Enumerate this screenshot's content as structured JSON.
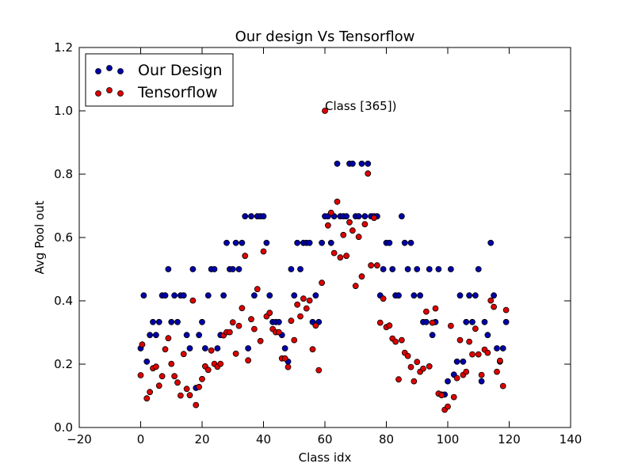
{
  "chart_data": {
    "type": "scatter",
    "title": "Our design Vs Tensorflow",
    "xlabel": "Class idx",
    "ylabel": "Avg Pool out",
    "xlim": [
      -20,
      140
    ],
    "ylim": [
      0.0,
      1.2
    ],
    "x_ticks": [
      "−20",
      "0",
      "20",
      "40",
      "60",
      "80",
      "100",
      "120",
      "140"
    ],
    "y_ticks": [
      "0.0",
      "0.2",
      "0.4",
      "0.6",
      "0.8",
      "1.0",
      "1.2"
    ],
    "grid": false,
    "legend_position": "top-left",
    "annotation": {
      "text": "Class [365])",
      "x": 60,
      "y": 1.0
    },
    "series": [
      {
        "name": "Our Design",
        "color": "#0000aa",
        "points": [
          [
            0,
            0.25
          ],
          [
            1,
            0.417
          ],
          [
            2,
            0.208
          ],
          [
            3,
            0.292
          ],
          [
            4,
            0.333
          ],
          [
            5,
            0.292
          ],
          [
            6,
            0.333
          ],
          [
            7,
            0.417
          ],
          [
            8,
            0.417
          ],
          [
            9,
            0.5
          ],
          [
            10,
            0.333
          ],
          [
            11,
            0.417
          ],
          [
            12,
            0.333
          ],
          [
            13,
            0.417
          ],
          [
            14,
            0.417
          ],
          [
            15,
            0.292
          ],
          [
            16,
            0.25
          ],
          [
            17,
            0.5
          ],
          [
            18,
            0.125
          ],
          [
            19,
            0.292
          ],
          [
            20,
            0.333
          ],
          [
            21,
            0.25
          ],
          [
            22,
            0.417
          ],
          [
            23,
            0.5
          ],
          [
            24,
            0.5
          ],
          [
            25,
            0.25
          ],
          [
            26,
            0.292
          ],
          [
            27,
            0.417
          ],
          [
            28,
            0.583
          ],
          [
            29,
            0.5
          ],
          [
            30,
            0.5
          ],
          [
            31,
            0.583
          ],
          [
            32,
            0.5
          ],
          [
            33,
            0.583
          ],
          [
            34,
            0.667
          ],
          [
            35,
            0.25
          ],
          [
            36,
            0.667
          ],
          [
            37,
            0.417
          ],
          [
            38,
            0.667
          ],
          [
            39,
            0.667
          ],
          [
            40,
            0.667
          ],
          [
            41,
            0.583
          ],
          [
            42,
            0.417
          ],
          [
            43,
            0.333
          ],
          [
            44,
            0.333
          ],
          [
            45,
            0.333
          ],
          [
            46,
            0.292
          ],
          [
            47,
            0.25
          ],
          [
            48,
            0.208
          ],
          [
            49,
            0.5
          ],
          [
            50,
            0.417
          ],
          [
            51,
            0.583
          ],
          [
            52,
            0.5
          ],
          [
            53,
            0.583
          ],
          [
            54,
            0.583
          ],
          [
            55,
            0.583
          ],
          [
            56,
            0.333
          ],
          [
            57,
            0.417
          ],
          [
            58,
            0.333
          ],
          [
            59,
            0.583
          ],
          [
            60,
            0.667
          ],
          [
            61,
            0.667
          ],
          [
            62,
            0.583
          ],
          [
            63,
            0.667
          ],
          [
            64,
            0.833
          ],
          [
            65,
            0.667
          ],
          [
            66,
            0.667
          ],
          [
            67,
            0.667
          ],
          [
            68,
            0.833
          ],
          [
            69,
            0.833
          ],
          [
            70,
            0.667
          ],
          [
            71,
            0.667
          ],
          [
            72,
            0.833
          ],
          [
            73,
            0.667
          ],
          [
            74,
            0.833
          ],
          [
            75,
            0.667
          ],
          [
            76,
            0.667
          ],
          [
            77,
            0.667
          ],
          [
            78,
            0.417
          ],
          [
            79,
            0.5
          ],
          [
            80,
            0.583
          ],
          [
            81,
            0.583
          ],
          [
            82,
            0.5
          ],
          [
            83,
            0.417
          ],
          [
            84,
            0.417
          ],
          [
            85,
            0.667
          ],
          [
            86,
            0.583
          ],
          [
            87,
            0.5
          ],
          [
            88,
            0.583
          ],
          [
            89,
            0.417
          ],
          [
            90,
            0.5
          ],
          [
            91,
            0.417
          ],
          [
            92,
            0.333
          ],
          [
            93,
            0.333
          ],
          [
            94,
            0.5
          ],
          [
            95,
            0.292
          ],
          [
            96,
            0.333
          ],
          [
            97,
            0.5
          ],
          [
            98,
            0.104
          ],
          [
            99,
            0.104
          ],
          [
            100,
            0.146
          ],
          [
            101,
            0.5
          ],
          [
            102,
            0.167
          ],
          [
            103,
            0.208
          ],
          [
            104,
            0.417
          ],
          [
            105,
            0.208
          ],
          [
            106,
            0.333
          ],
          [
            107,
            0.417
          ],
          [
            108,
            0.333
          ],
          [
            109,
            0.417
          ],
          [
            110,
            0.5
          ],
          [
            111,
            0.146
          ],
          [
            112,
            0.333
          ],
          [
            113,
            0.292
          ],
          [
            114,
            0.583
          ],
          [
            115,
            0.417
          ],
          [
            116,
            0.25
          ],
          [
            117,
            0.208
          ],
          [
            118,
            0.25
          ],
          [
            119,
            0.333
          ]
        ]
      },
      {
        "name": "Tensorflow",
        "color": "#dd0000",
        "points": [
          [
            0,
            0.165
          ],
          [
            0.5,
            0.262
          ],
          [
            2,
            0.092
          ],
          [
            3,
            0.112
          ],
          [
            4,
            0.187
          ],
          [
            5,
            0.192
          ],
          [
            6,
            0.132
          ],
          [
            7,
            0.162
          ],
          [
            8,
            0.247
          ],
          [
            9,
            0.282
          ],
          [
            10,
            0.201
          ],
          [
            11,
            0.162
          ],
          [
            12,
            0.142
          ],
          [
            13,
            0.101
          ],
          [
            14,
            0.232
          ],
          [
            15,
            0.122
          ],
          [
            16,
            0.102
          ],
          [
            17,
            0.401
          ],
          [
            18,
            0.071
          ],
          [
            19,
            0.128
          ],
          [
            20,
            0.153
          ],
          [
            21,
            0.193
          ],
          [
            22,
            0.182
          ],
          [
            23,
            0.243
          ],
          [
            24,
            0.201
          ],
          [
            25,
            0.192
          ],
          [
            26,
            0.201
          ],
          [
            27,
            0.291
          ],
          [
            28,
            0.301
          ],
          [
            29,
            0.301
          ],
          [
            30,
            0.332
          ],
          [
            31,
            0.233
          ],
          [
            32,
            0.321
          ],
          [
            33,
            0.377
          ],
          [
            34,
            0.542
          ],
          [
            35,
            0.212
          ],
          [
            36,
            0.342
          ],
          [
            37,
            0.311
          ],
          [
            38,
            0.437
          ],
          [
            39,
            0.273
          ],
          [
            40,
            0.556
          ],
          [
            41,
            0.351
          ],
          [
            42,
            0.362
          ],
          [
            43,
            0.311
          ],
          [
            44,
            0.301
          ],
          [
            45,
            0.301
          ],
          [
            46,
            0.218
          ],
          [
            47,
            0.218
          ],
          [
            48,
            0.191
          ],
          [
            49,
            0.337
          ],
          [
            50,
            0.276
          ],
          [
            51,
            0.388
          ],
          [
            52,
            0.351
          ],
          [
            53,
            0.407
          ],
          [
            54,
            0.376
          ],
          [
            55,
            0.401
          ],
          [
            56,
            0.247
          ],
          [
            57,
            0.322
          ],
          [
            58,
            0.181
          ],
          [
            59,
            0.457
          ],
          [
            60,
            1.0
          ],
          [
            61,
            0.638
          ],
          [
            62,
            0.678
          ],
          [
            63,
            0.551
          ],
          [
            64,
            0.713
          ],
          [
            65,
            0.537
          ],
          [
            66,
            0.608
          ],
          [
            67,
            0.542
          ],
          [
            68,
            0.648
          ],
          [
            69,
            0.622
          ],
          [
            70,
            0.447
          ],
          [
            71,
            0.602
          ],
          [
            72,
            0.477
          ],
          [
            73,
            0.642
          ],
          [
            74,
            0.802
          ],
          [
            75,
            0.512
          ],
          [
            76,
            0.662
          ],
          [
            77,
            0.512
          ],
          [
            78,
            0.331
          ],
          [
            79,
            0.407
          ],
          [
            80,
            0.317
          ],
          [
            81,
            0.322
          ],
          [
            82,
            0.281
          ],
          [
            83,
            0.271
          ],
          [
            84,
            0.152
          ],
          [
            85,
            0.276
          ],
          [
            86,
            0.236
          ],
          [
            87,
            0.226
          ],
          [
            88,
            0.191
          ],
          [
            89,
            0.146
          ],
          [
            90,
            0.207
          ],
          [
            91,
            0.176
          ],
          [
            92,
            0.186
          ],
          [
            93,
            0.366
          ],
          [
            94,
            0.193
          ],
          [
            95,
            0.331
          ],
          [
            96,
            0.376
          ],
          [
            97,
            0.107
          ],
          [
            98,
            0.102
          ],
          [
            99,
            0.056
          ],
          [
            100,
            0.066
          ],
          [
            101,
            0.321
          ],
          [
            102,
            0.096
          ],
          [
            103,
            0.156
          ],
          [
            104,
            0.276
          ],
          [
            105,
            0.166
          ],
          [
            106,
            0.176
          ],
          [
            107,
            0.271
          ],
          [
            108,
            0.231
          ],
          [
            109,
            0.312
          ],
          [
            110,
            0.231
          ],
          [
            111,
            0.166
          ],
          [
            112,
            0.246
          ],
          [
            113,
            0.236
          ],
          [
            114,
            0.401
          ],
          [
            115,
            0.381
          ],
          [
            116,
            0.176
          ],
          [
            117,
            0.211
          ],
          [
            118,
            0.131
          ],
          [
            119,
            0.371
          ]
        ]
      }
    ]
  }
}
